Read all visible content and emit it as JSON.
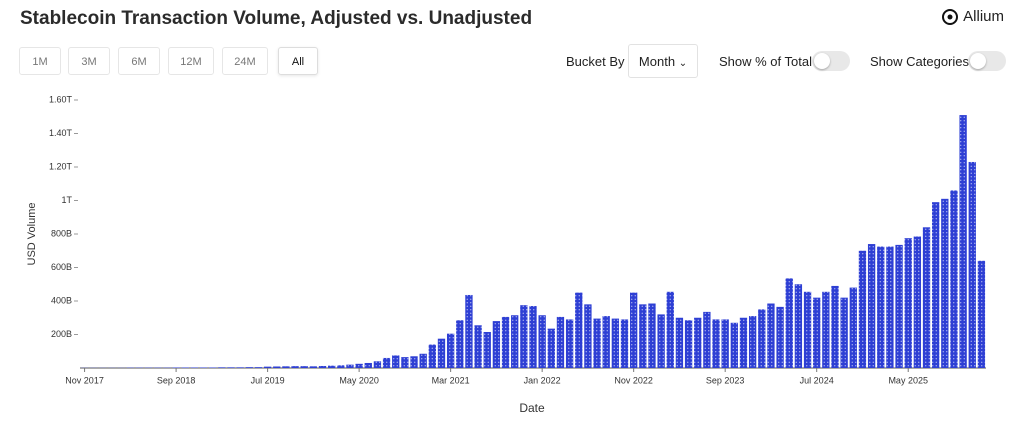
{
  "header": {
    "title": "Stablecoin Transaction Volume, Adjusted vs. Unadjusted",
    "logo": "Allium"
  },
  "controls": {
    "ranges": [
      "1M",
      "3M",
      "6M",
      "12M",
      "24M",
      "All"
    ],
    "active_range": "All",
    "bucket_label": "Bucket By",
    "bucket_value": "Month",
    "toggle_percent": "Show % of Total",
    "toggle_categories": "Show Categories"
  },
  "chart_data": {
    "type": "bar",
    "color": "#2e3fd4",
    "x_label": "Date",
    "y_label": "USD Volume",
    "grid": false,
    "categories": [
      "Nov 2017",
      null,
      null,
      null,
      null,
      null,
      null,
      null,
      null,
      null,
      "Sep 2018",
      null,
      null,
      null,
      null,
      null,
      null,
      null,
      null,
      null,
      "Jul 2019",
      null,
      null,
      null,
      null,
      null,
      null,
      null,
      null,
      null,
      "May 2020",
      null,
      null,
      null,
      null,
      null,
      null,
      null,
      null,
      null,
      "Mar 2021",
      null,
      null,
      null,
      null,
      null,
      null,
      null,
      null,
      null,
      "Jan 2022",
      null,
      null,
      null,
      null,
      null,
      null,
      null,
      null,
      null,
      "Nov 2022",
      null,
      null,
      null,
      null,
      null,
      null,
      null,
      null,
      null,
      "Sep 2023",
      null,
      null,
      null,
      null,
      null,
      null,
      null,
      null,
      null,
      "Jul 2024",
      null,
      null,
      null,
      null,
      null,
      null,
      null,
      null,
      null,
      "May 2025",
      null,
      null,
      null,
      null,
      null,
      null,
      null,
      null
    ],
    "values": [
      1000000000.0,
      1000000000.0,
      1000000000.0,
      1000000000.0,
      1000000000.0,
      2000000000.0,
      2000000000.0,
      2000000000.0,
      2000000000.0,
      2000000000.0,
      3000000000.0,
      3000000000.0,
      3000000000.0,
      3000000000.0,
      3000000000.0,
      4000000000.0,
      4000000000.0,
      4000000000.0,
      5000000000.0,
      5000000000.0,
      8000000000.0,
      9000000000.0,
      10000000000.0,
      11000000000.0,
      11000000000.0,
      10000000000.0,
      12000000000.0,
      14000000000.0,
      16000000000.0,
      20000000000.0,
      25000000000.0,
      30000000000.0,
      40000000000.0,
      60000000000.0,
      75000000000.0,
      65000000000.0,
      70000000000.0,
      85000000000.0,
      140000000000.0,
      175000000000.0,
      205000000000.0,
      285000000000.0,
      436000000000.0,
      255000000000.0,
      215000000000.0,
      280000000000.0,
      305000000000.0,
      315000000000.0,
      375000000000.0,
      370000000000.0,
      315000000000.0,
      235000000000.0,
      305000000000.0,
      290000000000.0,
      450000000000.0,
      380000000000.0,
      295000000000.0,
      310000000000.0,
      295000000000.0,
      290000000000.0,
      450000000000.0,
      380000000000.0,
      385000000000.0,
      320000000000.0,
      455000000000.0,
      300000000000.0,
      285000000000.0,
      300000000000.0,
      335000000000.0,
      290000000000.0,
      290000000000.0,
      270000000000.0,
      300000000000.0,
      310000000000.0,
      350000000000.0,
      385000000000.0,
      365000000000.0,
      535000000000.0,
      500000000000.0,
      455000000000.0,
      420000000000.0,
      455000000000.0,
      490000000000.0,
      420000000000.0,
      480000000000.0,
      700000000000.0,
      740000000000.0,
      725000000000.0,
      725000000000.0,
      735000000000.0,
      775000000000.0,
      785000000000.0,
      840000000000.0,
      990000000000.0,
      1010000000000.0,
      1060000000000.0,
      1510000000000.0,
      1230000000000.0,
      640000000000.0
    ],
    "ylim": [
      0,
      1600000000000.0
    ],
    "yticks": [
      {
        "value": 200000000000.0,
        "label": "200B"
      },
      {
        "value": 400000000000.0,
        "label": "400B"
      },
      {
        "value": 600000000000.0,
        "label": "600B"
      },
      {
        "value": 800000000000.0,
        "label": "800B"
      },
      {
        "value": 1000000000000.0,
        "label": "1T"
      },
      {
        "value": 1200000000000.0,
        "label": "1.20T"
      },
      {
        "value": 1400000000000.0,
        "label": "1.40T"
      },
      {
        "value": 1600000000000.0,
        "label": "1.60T"
      }
    ]
  }
}
